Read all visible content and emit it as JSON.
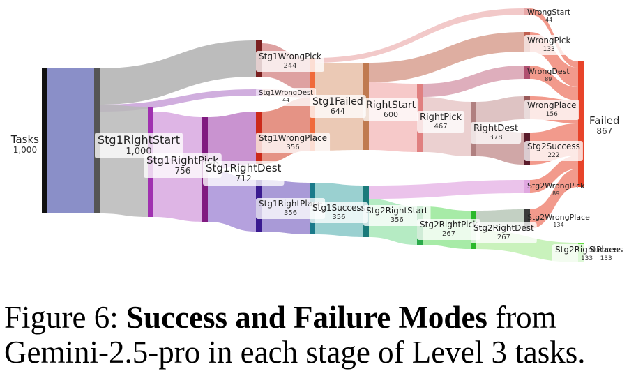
{
  "nodes": [
    {
      "id": "tasks",
      "name": "Tasks",
      "value": "1,000",
      "color": "#111111"
    },
    {
      "id": "s1rs",
      "name": "Stg1RightStart",
      "value": "1,000",
      "color": "#555555"
    },
    {
      "id": "s1wp",
      "name": "Stg1WrongPick",
      "value": "244",
      "color": "#7a2020"
    },
    {
      "id": "s1wd",
      "name": "Stg1WrongDest",
      "value": "44",
      "color": "#a050c0"
    },
    {
      "id": "s1rp",
      "name": "Stg1RightPick",
      "value": "756",
      "color": "#a030b0"
    },
    {
      "id": "s1rd",
      "name": "Stg1RightDest",
      "value": "712",
      "color": "#801a80"
    },
    {
      "id": "s1wpl",
      "name": "Stg1WrongPlace",
      "value": "356",
      "color": "#cc2a1a"
    },
    {
      "id": "s1rpl",
      "name": "Stg1RightPlace",
      "value": "356",
      "color": "#3a1a90"
    },
    {
      "id": "s1f",
      "name": "Stg1Failed",
      "value": "644",
      "color": "#f06a3a"
    },
    {
      "id": "s1s",
      "name": "Stg1Success",
      "value": "356",
      "color": "#1a7a8a"
    },
    {
      "id": "rs",
      "name": "RightStart",
      "value": "600",
      "color": "#c07a50"
    },
    {
      "id": "s2rs",
      "name": "Stg2RightStart",
      "value": "356",
      "color": "#1a7a7a"
    },
    {
      "id": "rp",
      "name": "RightPick",
      "value": "467",
      "color": "#e08080"
    },
    {
      "id": "s2rp",
      "name": "Stg2RightPick",
      "value": "267",
      "color": "#2aaa4a"
    },
    {
      "id": "rd",
      "name": "RightDest",
      "value": "378",
      "color": "#b08080"
    },
    {
      "id": "s2rd",
      "name": "Stg2RightDest",
      "value": "267",
      "color": "#2ab82a"
    },
    {
      "id": "wstart",
      "name": "WrongStart",
      "value": "44",
      "color": "#e8a8a8"
    },
    {
      "id": "wpick",
      "name": "WrongPick",
      "value": "133",
      "color": "#c06050"
    },
    {
      "id": "wdest",
      "name": "WrongDest",
      "value": "89",
      "color": "#b05070"
    },
    {
      "id": "wplace",
      "name": "WrongPlace",
      "value": "156",
      "color": "#9a5a5a"
    },
    {
      "id": "s2succ",
      "name": "Stg2Success",
      "value": "222",
      "color": "#5a1a2a"
    },
    {
      "id": "s2wpick",
      "name": "Stg2WrongPick",
      "value": "89",
      "color": "#e0a8e0"
    },
    {
      "id": "s2wplace",
      "name": "Stg2WrongPlace",
      "value": "134",
      "color": "#3a3a3a"
    },
    {
      "id": "s2rpl",
      "name": "Stg2RightPlace",
      "value": "133",
      "color": "#b8f0a0"
    },
    {
      "id": "failed",
      "name": "Failed",
      "value": "867",
      "color": "#e8442a"
    },
    {
      "id": "success",
      "name": "Success",
      "value": "133",
      "color": "#66dd44"
    }
  ],
  "caption": {
    "prefix": "Figure 6:",
    "title": "Success and Failure Modes",
    "rest": "from Gemini-2.5-pro in each stage of Level 3 tasks."
  }
}
